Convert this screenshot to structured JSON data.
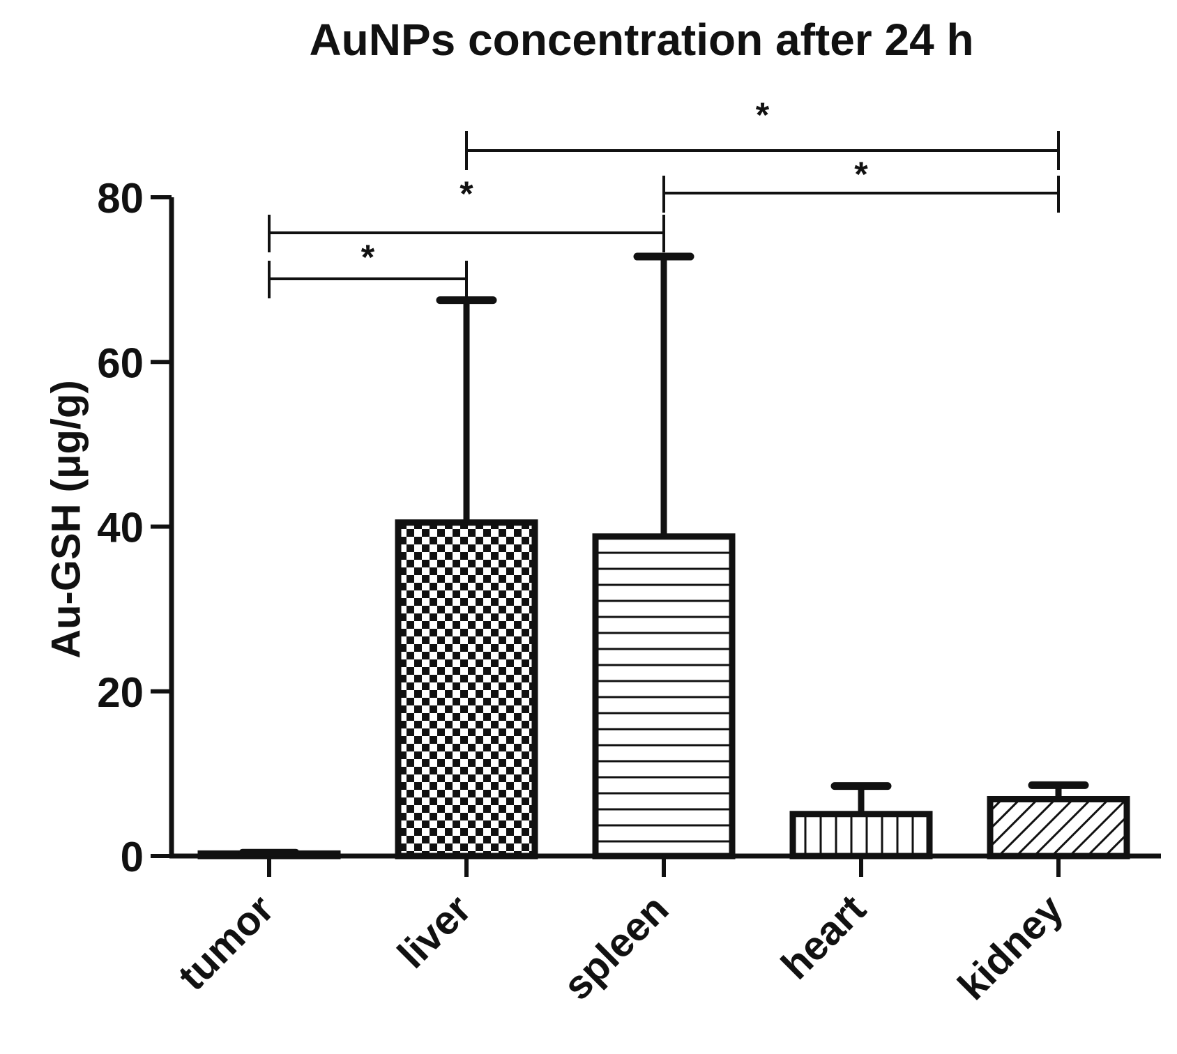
{
  "chart_data": {
    "type": "bar",
    "title": "AuNPs concentration after 24 h",
    "xlabel": "",
    "ylabel": "Au-GSH (μg/g)",
    "ylim": [
      0,
      80
    ],
    "yticks": [
      0,
      20,
      40,
      60,
      80
    ],
    "categories": [
      "tumor",
      "liver",
      "spleen",
      "heart",
      "kidney"
    ],
    "values": [
      0.3,
      40.5,
      38.8,
      5.1,
      6.9
    ],
    "error_upper": [
      0.4,
      67.5,
      72.8,
      8.5,
      8.6
    ],
    "patterns": [
      "none",
      "checker",
      "horizontal-lines",
      "vertical-lines",
      "diagonal-lines"
    ],
    "grid": false,
    "legend": "none",
    "significance": [
      {
        "from": "tumor",
        "to": "liver",
        "label": "*"
      },
      {
        "from": "tumor",
        "to": "spleen",
        "label": "*"
      },
      {
        "from": "spleen",
        "to": "kidney",
        "label": "*"
      },
      {
        "from": "liver",
        "to": "kidney",
        "label": "*"
      }
    ]
  },
  "colors": {
    "ink": "#111111",
    "background": "#ffffff"
  }
}
